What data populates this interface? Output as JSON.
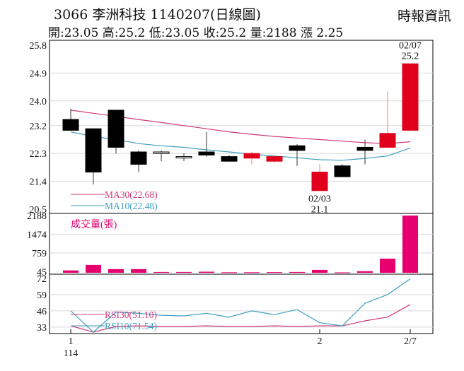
{
  "header": {
    "title": "3066  李洲科技  1140207(日線圖)",
    "source": "時報資訊",
    "stats": "開:23.05 高:25.2 低:23.05 收:25.2 量:2188 漲 2.25"
  },
  "chart_data": [
    {
      "type": "candlestick",
      "name": "price",
      "yticks": [
        "25.8",
        "24.9",
        "24.0",
        "23.2",
        "22.3",
        "21.4",
        "20.5"
      ],
      "ylim": [
        20.5,
        25.8
      ],
      "candles": [
        {
          "o": 23.4,
          "h": 23.75,
          "l": 23.05,
          "c": 23.05
        },
        {
          "o": 23.1,
          "h": 23.1,
          "l": 21.3,
          "c": 21.7
        },
        {
          "o": 23.7,
          "h": 23.7,
          "l": 22.3,
          "c": 22.5
        },
        {
          "o": 22.35,
          "h": 22.4,
          "l": 21.7,
          "c": 21.95
        },
        {
          "o": 22.35,
          "h": 22.4,
          "l": 22.05,
          "c": 22.3
        },
        {
          "o": 22.2,
          "h": 22.3,
          "l": 22.05,
          "c": 22.2
        },
        {
          "o": 22.35,
          "h": 23.0,
          "l": 22.2,
          "c": 22.25
        },
        {
          "o": 22.2,
          "h": 22.25,
          "l": 22.05,
          "c": 22.05
        },
        {
          "o": 22.15,
          "h": 22.35,
          "l": 21.95,
          "c": 22.3
        },
        {
          "o": 22.05,
          "h": 22.2,
          "l": 22.0,
          "c": 22.2
        },
        {
          "o": 22.55,
          "h": 22.6,
          "l": 21.9,
          "c": 22.4
        },
        {
          "o": 21.1,
          "h": 21.95,
          "l": 21.1,
          "c": 21.7
        },
        {
          "o": 21.9,
          "h": 21.95,
          "l": 21.55,
          "c": 21.55
        },
        {
          "o": 22.5,
          "h": 22.75,
          "l": 21.95,
          "c": 22.4
        },
        {
          "o": 22.5,
          "h": 24.3,
          "l": 22.5,
          "c": 22.95
        },
        {
          "o": 23.05,
          "h": 25.2,
          "l": 23.05,
          "c": 25.2
        }
      ],
      "ma30": {
        "label": "MA30(22.68)",
        "color": "#d0387a",
        "values": [
          23.7,
          23.6,
          23.5,
          23.4,
          23.3,
          23.2,
          23.1,
          23.0,
          22.92,
          22.85,
          22.8,
          22.75,
          22.7,
          22.65,
          22.62,
          22.68
        ]
      },
      "ma10": {
        "label": "MA10(22.48)",
        "color": "#3f9fbf",
        "values": [
          23.0,
          22.85,
          22.75,
          22.62,
          22.55,
          22.5,
          22.42,
          22.35,
          22.28,
          22.22,
          22.16,
          22.1,
          22.08,
          22.14,
          22.22,
          22.48
        ]
      },
      "annotations": [
        {
          "label": "02/07",
          "value": "25.2",
          "index": 15,
          "where": "above"
        },
        {
          "label": "02/03",
          "value": "21.1",
          "index": 11,
          "where": "below"
        }
      ]
    },
    {
      "type": "bar",
      "name": "volume",
      "title": "成交量(張)",
      "yticks": [
        "2188",
        "1474",
        "759",
        "45"
      ],
      "ylim": [
        0,
        2188
      ],
      "values": [
        90,
        300,
        140,
        140,
        30,
        30,
        40,
        20,
        20,
        25,
        30,
        110,
        15,
        60,
        540,
        2188
      ],
      "color": "#e6006e"
    },
    {
      "type": "line",
      "name": "rsi",
      "yticks": [
        "72",
        "59",
        "46",
        "33"
      ],
      "ylim": [
        29,
        73
      ],
      "rsi30": {
        "label": "RSI30(51.10)",
        "color": "#d0387a",
        "values": [
          34,
          29,
          33.5,
          34,
          33.5,
          33.5,
          34,
          33.5,
          33.5,
          34,
          33.5,
          34,
          34,
          38,
          41,
          51.1
        ]
      },
      "rsi10": {
        "label": "RSI10(71.54)",
        "color": "#3f9fbf",
        "values": [
          46,
          29,
          45,
          44,
          42.5,
          42,
          44,
          41,
          46,
          43,
          47,
          36.5,
          34,
          52,
          59,
          71.54
        ]
      }
    }
  ],
  "xaxis": {
    "ticks": [
      {
        "label": "1",
        "index": 0
      },
      {
        "label": "2",
        "index": 11
      },
      {
        "label": "2/7",
        "index": 15
      }
    ],
    "sublabel": "114"
  },
  "colors": {
    "up": "#e0001b",
    "down": "#000000",
    "neutral": "#000000",
    "grid": "#d9d9d9",
    "axis": "#000000"
  }
}
